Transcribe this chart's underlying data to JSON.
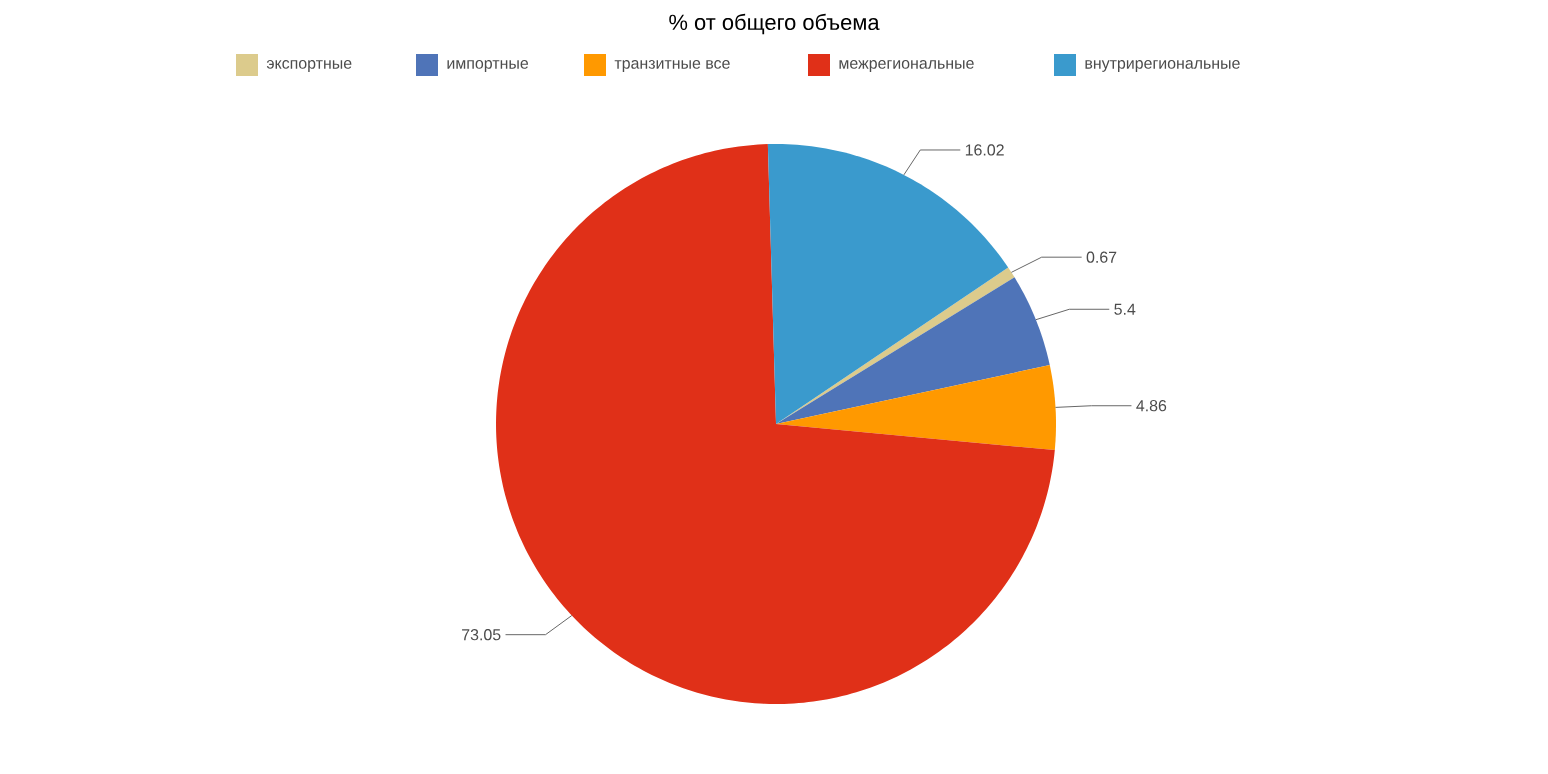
{
  "chart_data": {
    "type": "pie",
    "title": "% от общего объема",
    "categories": [
      "экспортные",
      "импортные",
      "транзитные все",
      "межрегиональные",
      "внутрирегиональные"
    ],
    "values": [
      0.67,
      5.4,
      4.86,
      73.05,
      16.02
    ],
    "colors": [
      "#dccb8c",
      "#4f74b8",
      "#ff9900",
      "#e03018",
      "#3a9acd"
    ],
    "data_labels": true,
    "legend": "top"
  }
}
